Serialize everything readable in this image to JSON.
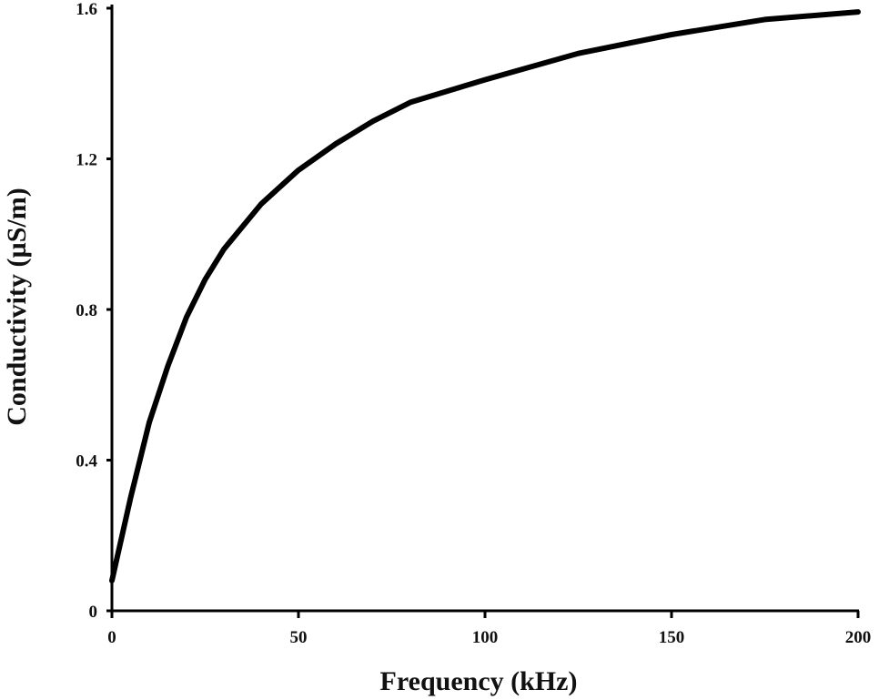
{
  "chart_data": {
    "type": "line",
    "title": "",
    "xlabel": "Frequency (kHz)",
    "ylabel": "Conductivity (µS/m)",
    "xlim": [
      0,
      200
    ],
    "ylim": [
      0,
      1.6
    ],
    "x_ticks": [
      "0",
      "50",
      "100",
      "150",
      "200"
    ],
    "y_ticks": [
      "0",
      "0.4",
      "0.8",
      "1.2",
      "1.6"
    ],
    "grid": false,
    "legend": "none",
    "line_color": "#000000",
    "series": [
      {
        "x": [
          0,
          5,
          10,
          15,
          20,
          25,
          30,
          40,
          50,
          60,
          70,
          80,
          100,
          125,
          150,
          175,
          200
        ],
        "y": [
          0.08,
          0.3,
          0.5,
          0.65,
          0.78,
          0.88,
          0.96,
          1.08,
          1.17,
          1.24,
          1.3,
          1.35,
          1.41,
          1.48,
          1.53,
          1.57,
          1.59
        ]
      }
    ]
  }
}
